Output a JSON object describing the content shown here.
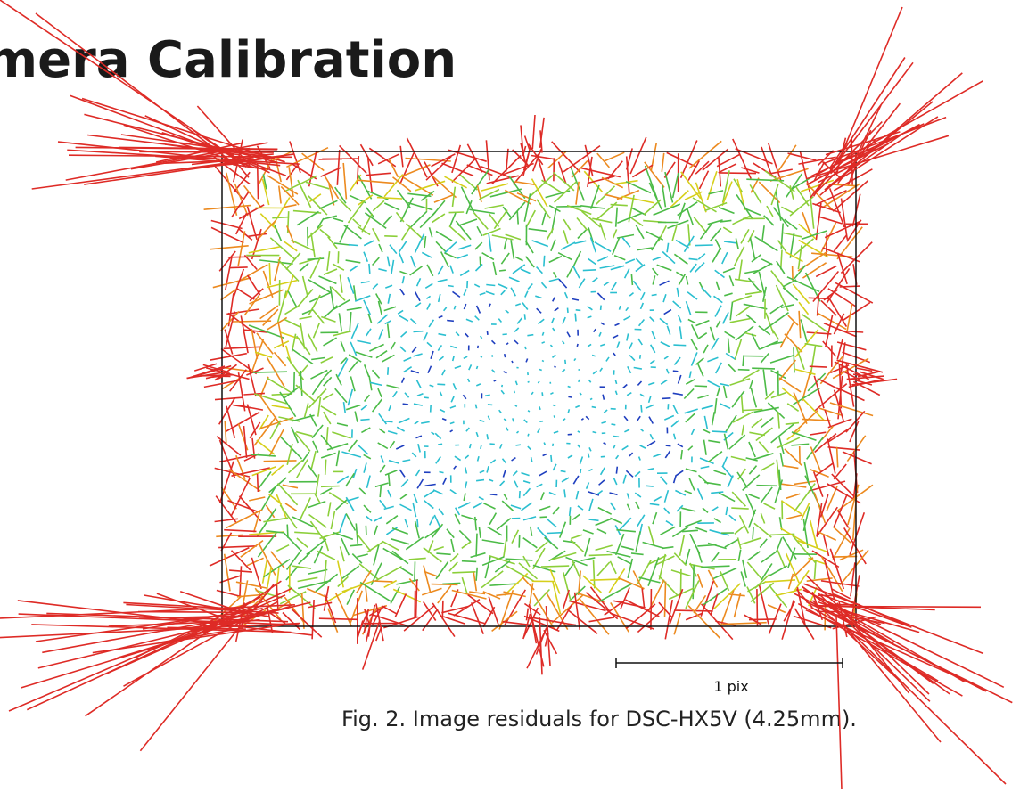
{
  "page": {
    "section_heading": "amera Calibration"
  },
  "figure": {
    "caption": "Fig. 2. Image residuals for DSC-HX5V (4.25mm).",
    "scale_bar_label": "1 pix",
    "colors": {
      "frame": "#111111",
      "scale_bar": "#111111",
      "residual_scale": [
        "#1f3fbf",
        "#2bbfd0",
        "#4cbb47",
        "#8ccf3a",
        "#d6cf1a",
        "#ec8a1f",
        "#de2b26"
      ]
    }
  }
}
